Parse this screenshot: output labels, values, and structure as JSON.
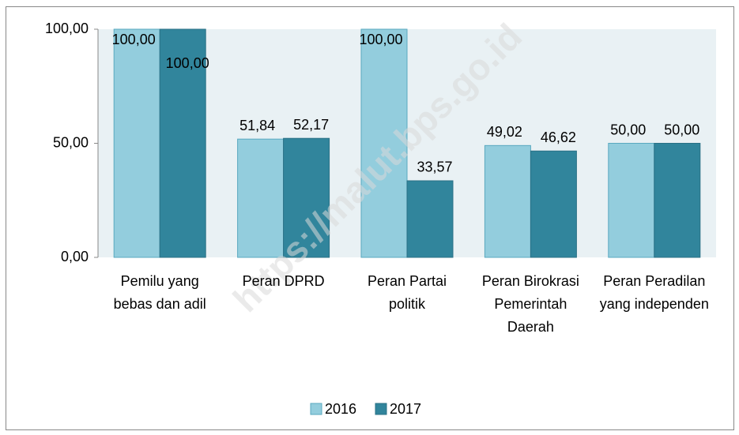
{
  "chart_data": {
    "type": "bar",
    "categories": [
      "Pemilu yang bebas dan adil",
      "Peran DPRD",
      "Peran Partai politik",
      "Peran Birokrasi Pemerintah Daerah",
      "Peran Peradilan yang independen"
    ],
    "series": [
      {
        "name": "2016",
        "color": "#93cddd",
        "values": [
          100,
          51.84,
          100,
          49.02,
          50
        ],
        "value_labels": [
          "100,00",
          "51,84",
          "100,00",
          "49,02",
          "50,00"
        ]
      },
      {
        "name": "2017",
        "color": "#31859c",
        "values": [
          100,
          52.17,
          33.57,
          46.62,
          50
        ],
        "value_labels": [
          "100,00",
          "52,17",
          "33,57",
          "46,62",
          "50,00"
        ]
      }
    ],
    "ylim": [
      0,
      100
    ],
    "yticks": [
      {
        "value": 0,
        "label": "0,00"
      },
      {
        "value": 50,
        "label": "50,00"
      },
      {
        "value": 100,
        "label": "100,00"
      }
    ],
    "legend": "bottom",
    "watermark": "https://malut.bps.go.id"
  }
}
